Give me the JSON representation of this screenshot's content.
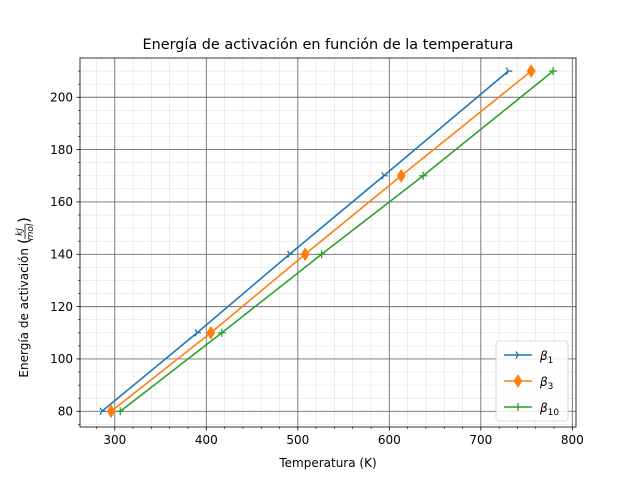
{
  "chart_data": {
    "type": "line",
    "title": "Energía de activación en función de la temperatura",
    "xlabel": "Temperatura (K)",
    "ylabel": "Energía de activación",
    "ylabel_unit_numerator": "kJ",
    "ylabel_unit_denominator": "mol",
    "xlim": [
      262,
      804
    ],
    "ylim": [
      74,
      215
    ],
    "xticks": [
      300,
      400,
      500,
      600,
      700,
      800
    ],
    "xtick_labels": [
      "300",
      "400",
      "500",
      "600",
      "700",
      "800"
    ],
    "yticks": [
      80,
      100,
      120,
      140,
      160,
      180,
      200
    ],
    "ytick_labels": [
      "80",
      "100",
      "120",
      "140",
      "160",
      "180",
      "200"
    ],
    "grid": true,
    "legend_position": "bottom-right",
    "series": [
      {
        "name_base": "β",
        "name_sub": "1",
        "color": "#1f77b4",
        "marker": "tri-right",
        "x": [
          286,
          390,
          491,
          594,
          730
        ],
        "y": [
          80,
          110,
          140,
          170,
          210
        ]
      },
      {
        "name_base": "β",
        "name_sub": "3",
        "color": "#ff7f0e",
        "marker": "thin-diamond",
        "x": [
          296,
          405,
          508,
          613,
          755
        ],
        "y": [
          80,
          110,
          140,
          170,
          210
        ]
      },
      {
        "name_base": "β",
        "name_sub": "10",
        "color": "#2ca02c",
        "marker": "plus",
        "x": [
          306,
          417,
          526,
          637,
          779
        ],
        "y": [
          80,
          110,
          140,
          170,
          210
        ]
      }
    ]
  }
}
